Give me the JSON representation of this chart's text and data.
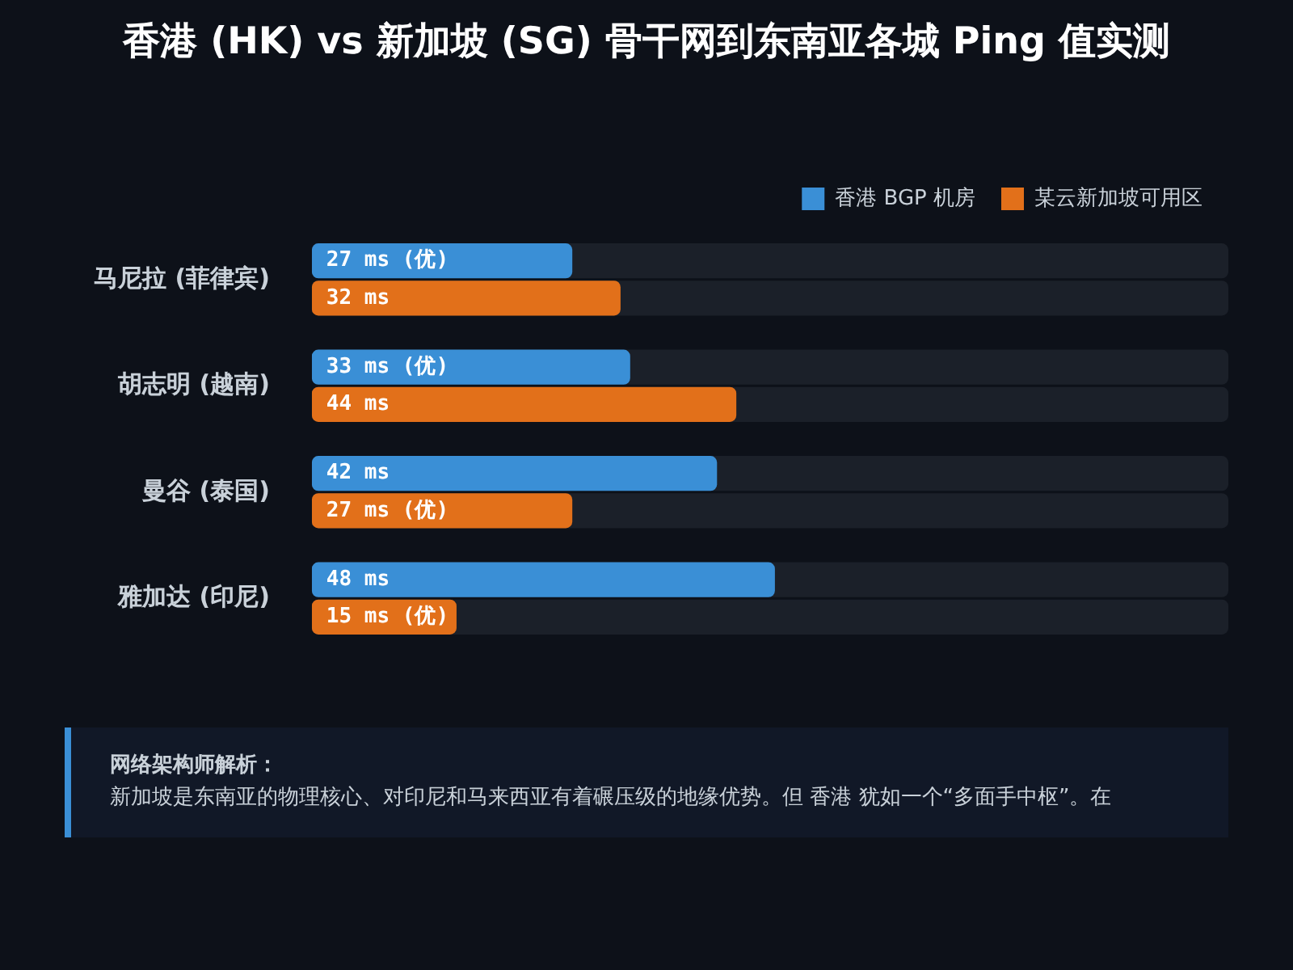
{
  "chart_data": {
    "type": "bar",
    "orientation": "horizontal",
    "title": "香港 (HK) vs 新加坡 (SG) 骨干网到东南亚各城 Ping 值实测",
    "categories": [
      "马尼拉 (菲律宾)",
      "胡志明 (越南)",
      "曼谷 (泰国)",
      "雅加达 (印尼)"
    ],
    "series": [
      {
        "name": "香港 BGP 机房",
        "color": "#3a8fd6",
        "values": [
          27,
          33,
          42,
          48
        ],
        "value_labels": [
          "27 ms (优)",
          "33 ms (优)",
          "42 ms",
          "48 ms"
        ]
      },
      {
        "name": "某云新加坡可用区",
        "color": "#e2701a",
        "values": [
          32,
          44,
          27,
          15
        ],
        "value_labels": [
          "32 ms",
          "44 ms",
          "27 ms (优)",
          "15 ms (优)"
        ]
      }
    ],
    "xlim": [
      0,
      95
    ],
    "tick_labels": "y",
    "legend": "top right",
    "annotations": [
      "网络架构师解析：",
      "新加坡是东南亚的物理核心、对印尼和马来西亚有着碾压级的地缘优势。但 香港 犹如一个“多面手中枢”。在"
    ]
  }
}
